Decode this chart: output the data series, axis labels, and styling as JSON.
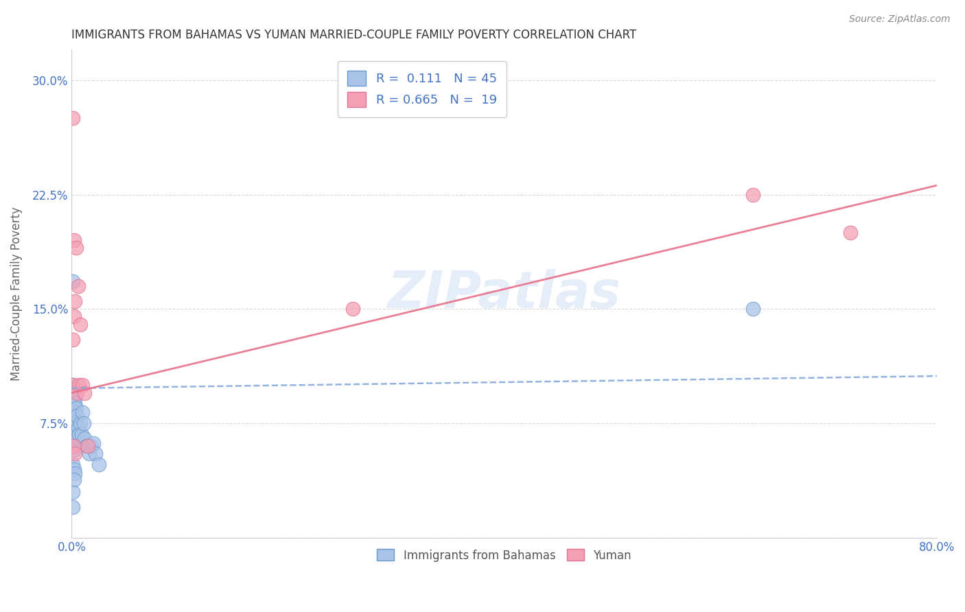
{
  "title": "IMMIGRANTS FROM BAHAMAS VS YUMAN MARRIED-COUPLE FAMILY POVERTY CORRELATION CHART",
  "source": "Source: ZipAtlas.com",
  "ylabel": "Married-Couple Family Poverty",
  "watermark": "ZIPatlas",
  "xlim": [
    0.0,
    0.8
  ],
  "ylim": [
    0.0,
    0.32
  ],
  "xticks": [
    0.0,
    0.1,
    0.2,
    0.3,
    0.4,
    0.5,
    0.6,
    0.7,
    0.8
  ],
  "xticklabels": [
    "0.0%",
    "",
    "",
    "",
    "",
    "",
    "",
    "",
    "80.0%"
  ],
  "yticks": [
    0.0,
    0.075,
    0.15,
    0.225,
    0.3
  ],
  "yticklabels": [
    "",
    "7.5%",
    "15.0%",
    "22.5%",
    "30.0%"
  ],
  "grid_color": "#d8d8d8",
  "series1_color": "#aac4e8",
  "series2_color": "#f4a0b5",
  "series1_edge": "#6699cc",
  "series2_edge": "#e07090",
  "trend1_color": "#88aadd",
  "trend2_color": "#e8708a",
  "R1": 0.111,
  "N1": 45,
  "R2": 0.665,
  "N2": 19,
  "legend_label1": "Immigrants from Bahamas",
  "legend_label2": "Yuman",
  "title_color": "#333333",
  "tick_color_y": "#4472c4",
  "tick_color_x": "#4472c4",
  "background_color": "#ffffff",
  "series1_x": [
    0.001,
    0.001,
    0.001,
    0.001,
    0.001,
    0.001,
    0.001,
    0.001,
    0.002,
    0.002,
    0.002,
    0.002,
    0.002,
    0.002,
    0.003,
    0.003,
    0.003,
    0.003,
    0.003,
    0.003,
    0.004,
    0.004,
    0.004,
    0.005,
    0.005,
    0.006,
    0.007,
    0.008,
    0.009,
    0.01,
    0.011,
    0.012,
    0.014,
    0.016,
    0.018,
    0.02,
    0.022,
    0.025,
    0.001,
    0.002,
    0.003,
    0.001,
    0.001,
    0.002,
    0.63
  ],
  "series1_y": [
    0.168,
    0.1,
    0.095,
    0.09,
    0.085,
    0.08,
    0.07,
    0.06,
    0.095,
    0.09,
    0.085,
    0.08,
    0.072,
    0.062,
    0.092,
    0.088,
    0.082,
    0.075,
    0.068,
    0.058,
    0.085,
    0.075,
    0.062,
    0.08,
    0.065,
    0.072,
    0.068,
    0.075,
    0.068,
    0.082,
    0.075,
    0.065,
    0.06,
    0.055,
    0.06,
    0.062,
    0.055,
    0.048,
    0.048,
    0.045,
    0.042,
    0.03,
    0.02,
    0.038,
    0.15
  ],
  "series2_x": [
    0.001,
    0.001,
    0.002,
    0.002,
    0.003,
    0.004,
    0.005,
    0.006,
    0.007,
    0.008,
    0.01,
    0.012,
    0.015,
    0.26,
    0.63,
    0.72,
    0.001,
    0.002,
    0.003
  ],
  "series2_y": [
    0.275,
    0.1,
    0.195,
    0.145,
    0.155,
    0.19,
    0.095,
    0.165,
    0.1,
    0.14,
    0.1,
    0.095,
    0.06,
    0.15,
    0.225,
    0.2,
    0.13,
    0.06,
    0.055
  ],
  "trend1_intercept": 0.098,
  "trend1_slope": 0.01,
  "trend2_intercept": 0.095,
  "trend2_slope": 0.17
}
